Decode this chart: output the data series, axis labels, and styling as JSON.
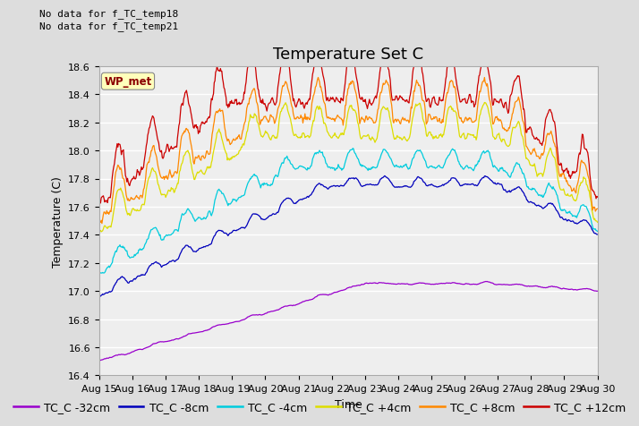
{
  "title": "Temperature Set C",
  "xlabel": "Time",
  "ylabel": "Temperature (C)",
  "ylim": [
    16.4,
    18.6
  ],
  "note_lines": [
    "No data for f_TC_temp18",
    "No data for f_TC_temp21"
  ],
  "legend_label": "WP_met",
  "tick_labels": [
    "Aug 15",
    "Aug 16",
    "Aug 17",
    "Aug 18",
    "Aug 19",
    "Aug 20",
    "Aug 21",
    "Aug 22",
    "Aug 23",
    "Aug 24",
    "Aug 25",
    "Aug 26",
    "Aug 27",
    "Aug 28",
    "Aug 29",
    "Aug 30"
  ],
  "series": {
    "TC_C -32cm": {
      "color": "#9900cc"
    },
    "TC_C -8cm": {
      "color": "#0000bb"
    },
    "TC_C -4cm": {
      "color": "#00ccdd"
    },
    "TC_C +4cm": {
      "color": "#dddd00"
    },
    "TC_C +8cm": {
      "color": "#ff8800"
    },
    "TC_C +12cm": {
      "color": "#cc0000"
    }
  },
  "background_color": "#dddddd",
  "plot_background": "#eeeeee",
  "grid_color": "#ffffff",
  "title_fontsize": 13,
  "axis_fontsize": 9,
  "tick_fontsize": 8,
  "legend_fontsize": 9
}
